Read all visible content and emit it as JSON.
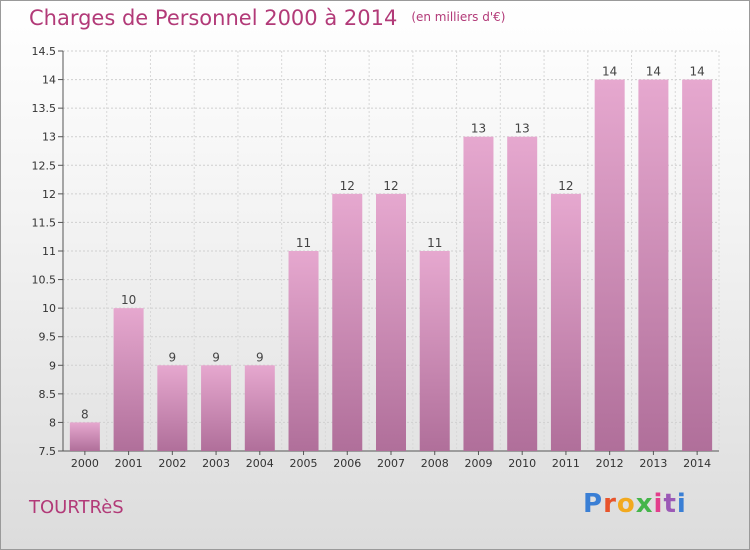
{
  "title": "Charges de Personnel 2000 à 2014",
  "unit_label": "(en milliers d'€)",
  "commune": "TOURTRèS",
  "logo": {
    "text": "Proxiti",
    "letter_colors": [
      "#3a7fd5",
      "#e8542b",
      "#f2a91e",
      "#44b54a",
      "#e33e8c",
      "#9b59b6",
      "#3a7fd5"
    ]
  },
  "colors": {
    "title": "#b23a78",
    "bar_top": "#e6a8cf",
    "bar_bottom": "#b06f9a"
  },
  "chart_data": {
    "type": "bar",
    "categories": [
      "2000",
      "2001",
      "2002",
      "2003",
      "2004",
      "2005",
      "2006",
      "2007",
      "2008",
      "2009",
      "2010",
      "2011",
      "2012",
      "2013",
      "2014"
    ],
    "values": [
      8,
      10,
      9,
      9,
      9,
      11,
      12,
      12,
      11,
      13,
      13,
      12,
      14,
      14,
      14
    ],
    "ylim": [
      7.5,
      14.5
    ],
    "yticks": [
      "7.5",
      "8",
      "8.5",
      "9",
      "9.5",
      "10",
      "10.5",
      "11",
      "11.5",
      "12",
      "12.5",
      "13",
      "13.5",
      "14",
      "14.5"
    ],
    "grid": true
  }
}
